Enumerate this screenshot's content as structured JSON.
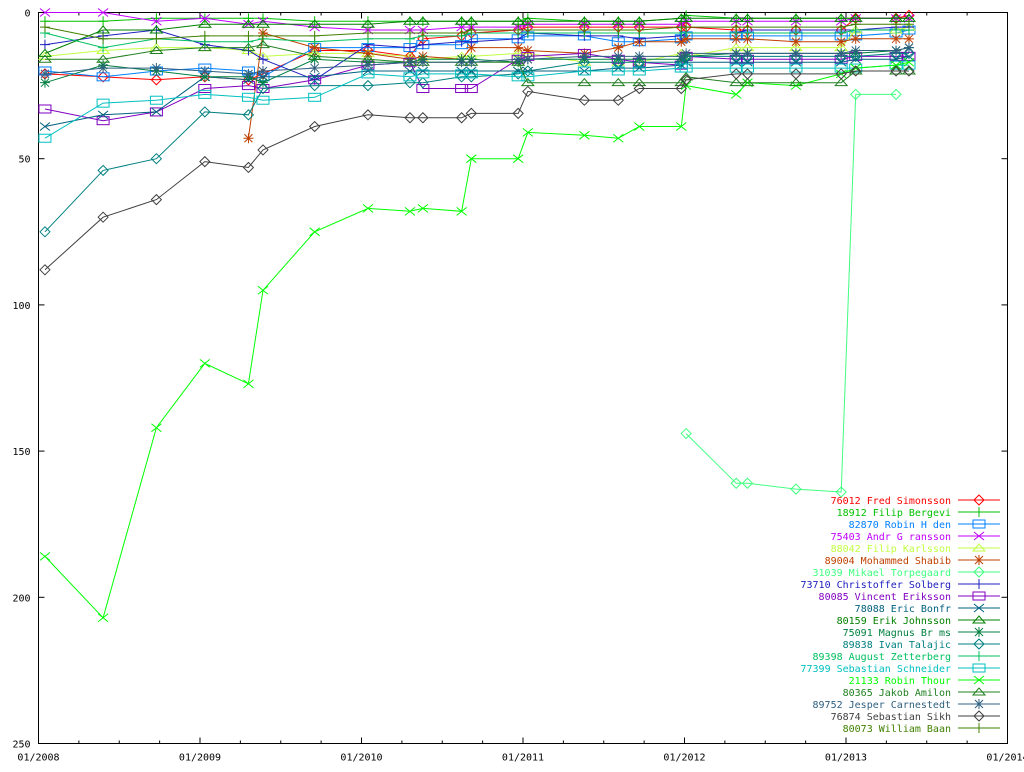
{
  "chart_data": {
    "type": "line",
    "title": "",
    "xlabel": "",
    "ylabel": "",
    "xlim": [
      2008.0,
      2014.0
    ],
    "ylim": [
      0,
      250
    ],
    "y_inverted": true,
    "grid": false,
    "legend_placement": "bottom-right",
    "x_ticks": [
      {
        "value": 2008,
        "label": "01/2008"
      },
      {
        "value": 2009,
        "label": "01/2009"
      },
      {
        "value": 2010,
        "label": "01/2010"
      },
      {
        "value": 2011,
        "label": "01/2011"
      },
      {
        "value": 2012,
        "label": "01/2012"
      },
      {
        "value": 2013,
        "label": "01/2013"
      },
      {
        "value": 2014,
        "label": "01/2014"
      }
    ],
    "y_ticks": [
      {
        "value": 0,
        "label": "0"
      },
      {
        "value": 50,
        "label": "50"
      },
      {
        "value": 100,
        "label": "100"
      },
      {
        "value": 150,
        "label": "150"
      },
      {
        "value": 200,
        "label": "200"
      },
      {
        "value": 250,
        "label": "250"
      }
    ],
    "x": [
      2008.04,
      2008.4,
      2008.73,
      2009.03,
      2009.3,
      2009.39,
      2009.71,
      2010.04,
      2010.3,
      2010.38,
      2010.62,
      2010.68,
      2010.97,
      2011.03,
      2011.38,
      2011.59,
      2011.72,
      2011.98,
      2012.01,
      2012.32,
      2012.39,
      2012.69,
      2012.97,
      2013.06,
      2013.31,
      2013.39
    ],
    "series": [
      {
        "name": "76012 Fred Simonsson",
        "color": "#ff0000",
        "marker": "diamond",
        "values": [
          21,
          22,
          23,
          22,
          23,
          21,
          13,
          13,
          15,
          9,
          8,
          7,
          6,
          5,
          5,
          5,
          5,
          5,
          5,
          6,
          6,
          6,
          6,
          2,
          2,
          1
        ]
      },
      {
        "name": "18912 Filip Bergevi",
        "color": "#00c000",
        "marker": "plus",
        "values": [
          3,
          3,
          2,
          2,
          2,
          2,
          3,
          3,
          3,
          3,
          3,
          3,
          3,
          2,
          3,
          3,
          3,
          2,
          1,
          2,
          2,
          2,
          2,
          2,
          2,
          2
        ]
      },
      {
        "name": "82870 Robin H den",
        "color": "#0080ff",
        "marker": "square",
        "values": [
          20,
          22,
          20,
          19,
          20,
          22,
          12,
          12,
          12,
          11,
          11,
          9,
          9,
          8,
          8,
          10,
          10,
          9,
          8,
          8,
          8,
          8,
          8,
          8,
          7,
          6
        ]
      },
      {
        "name": "75403 Andr  G ransson",
        "color": "#c000ff",
        "marker": "x",
        "values": [
          0,
          0,
          3,
          2,
          4,
          3,
          5,
          6,
          6,
          6,
          5,
          5,
          5,
          4,
          4,
          4,
          4,
          4,
          3,
          3,
          3,
          3,
          3,
          2,
          2,
          2
        ]
      },
      {
        "name": "88042 Filip Karlsson",
        "color": "#c0ff40",
        "marker": "triangle",
        "values": [
          15,
          13,
          12,
          12,
          13,
          15,
          14,
          14,
          15,
          16,
          15,
          15,
          14,
          14,
          17,
          17,
          17,
          14,
          15,
          12,
          12,
          12,
          12,
          6,
          6,
          5
        ]
      },
      {
        "name": "89004 Mohammed Shabib",
        "color": "#c04000",
        "marker": "star",
        "values": [
          null,
          null,
          null,
          null,
          43,
          7,
          12,
          14,
          16,
          15,
          16,
          12,
          12,
          13,
          14,
          12,
          10,
          10,
          9,
          9,
          9,
          10,
          10,
          9,
          9,
          9
        ]
      },
      {
        "name": "31039 Mikael Torpegaard",
        "color": "#40ff80",
        "marker": "diamond",
        "values": [
          null,
          null,
          null,
          null,
          null,
          null,
          null,
          null,
          null,
          null,
          null,
          null,
          null,
          null,
          null,
          null,
          null,
          null,
          144,
          161,
          161,
          163,
          164,
          28,
          28,
          null
        ]
      },
      {
        "name": "73710 Christoffer Solberg",
        "color": "#2020c0",
        "marker": "plus",
        "values": [
          11,
          8,
          6,
          11,
          13,
          16,
          23,
          11,
          12,
          11,
          10,
          10,
          9,
          7,
          8,
          8,
          9,
          8,
          7,
          7,
          6,
          6,
          6,
          6,
          5,
          5
        ]
      },
      {
        "name": "80085 Vincent Eriksson",
        "color": "#8000c0",
        "marker": "square",
        "values": [
          33,
          37,
          34,
          26,
          25,
          26,
          23,
          18,
          17,
          26,
          26,
          26,
          16,
          15,
          14,
          16,
          17,
          18,
          15,
          16,
          16,
          16,
          16,
          15,
          15,
          15
        ]
      },
      {
        "name": "78088 Eric Bonfr ",
        "color": "#006080",
        "marker": "x",
        "values": [
          39,
          35,
          34,
          22,
          23,
          22,
          22,
          20,
          20,
          20,
          20,
          20,
          20,
          20,
          20,
          19,
          19,
          18,
          17,
          17,
          17,
          17,
          17,
          16,
          16,
          15
        ]
      },
      {
        "name": "80159 Erik Johnsson",
        "color": "#008000",
        "marker": "triangle",
        "values": [
          14,
          6,
          6,
          4,
          4,
          4,
          4,
          4,
          3,
          3,
          3,
          3,
          3,
          3,
          3,
          3,
          3,
          2,
          2,
          2,
          2,
          2,
          2,
          2,
          2,
          2
        ]
      },
      {
        "name": "75091 Magnus Br ms",
        "color": "#008040",
        "marker": "star",
        "values": [
          24,
          18,
          20,
          22,
          22,
          24,
          16,
          17,
          17,
          16,
          16,
          16,
          17,
          16,
          16,
          16,
          16,
          16,
          15,
          14,
          14,
          14,
          14,
          14,
          13,
          12
        ]
      },
      {
        "name": "89838 Ivan Talajic",
        "color": "#008080",
        "marker": "diamond",
        "values": [
          75,
          54,
          50,
          34,
          35,
          26,
          25,
          25,
          24,
          24,
          22,
          22,
          21,
          20,
          17,
          17,
          17,
          17,
          15,
          15,
          15,
          15,
          15,
          15,
          14,
          14
        ]
      },
      {
        "name": "89398 August Zetterberg",
        "color": "#00c060",
        "marker": "plus",
        "values": [
          7,
          12,
          9,
          10,
          10,
          9,
          10,
          9,
          9,
          8,
          8,
          7,
          7,
          7,
          7,
          7,
          7,
          7,
          7,
          7,
          7,
          7,
          7,
          6,
          6,
          6
        ]
      },
      {
        "name": "77399 Sebastian Schneider",
        "color": "#00c0c0",
        "marker": "square",
        "values": [
          43,
          31,
          30,
          28,
          29,
          30,
          29,
          21,
          22,
          21,
          21,
          21,
          22,
          22,
          20,
          20,
          20,
          19,
          19,
          19,
          19,
          19,
          19,
          19,
          18,
          18
        ]
      },
      {
        "name": "21133 Robin Thour",
        "color": "#00ff00",
        "marker": "x",
        "values": [
          186,
          207,
          142,
          120,
          127,
          95,
          75,
          67,
          68,
          67,
          68,
          50,
          50,
          41,
          42,
          43,
          39,
          39,
          25,
          28,
          24,
          25,
          21,
          19,
          18,
          17
        ]
      },
      {
        "name": "80365 Jakob Amilon",
        "color": "#208020",
        "marker": "triangle",
        "values": [
          16,
          16,
          13,
          12,
          12,
          11,
          15,
          16,
          17,
          17,
          17,
          17,
          17,
          24,
          24,
          24,
          24,
          24,
          22,
          24,
          24,
          24,
          24,
          20,
          20,
          20
        ]
      },
      {
        "name": "89752 Jesper Carnestedt",
        "color": "#306080",
        "marker": "star",
        "values": [
          21,
          19,
          19,
          20,
          21,
          20,
          19,
          18,
          17,
          17,
          17,
          17,
          16,
          16,
          15,
          15,
          15,
          15,
          14,
          14,
          14,
          14,
          14,
          13,
          13,
          12
        ]
      },
      {
        "name": "76874 Sebastian Sikh",
        "color": "#404040",
        "marker": "diamond",
        "values": [
          88,
          70,
          64,
          51,
          53,
          47,
          39,
          35,
          36,
          36,
          36,
          34.5,
          34.5,
          27,
          30,
          30,
          26,
          26,
          23,
          21,
          21,
          21,
          21,
          20,
          20,
          20
        ]
      },
      {
        "name": "80073 William Baan",
        "color": "#408000",
        "marker": "plus",
        "values": [
          5,
          9,
          9,
          8,
          8,
          8,
          8,
          7,
          7,
          7,
          7,
          6,
          6,
          6,
          6,
          6,
          6,
          5,
          5,
          5,
          5,
          5,
          5,
          4,
          4,
          4
        ]
      }
    ]
  }
}
